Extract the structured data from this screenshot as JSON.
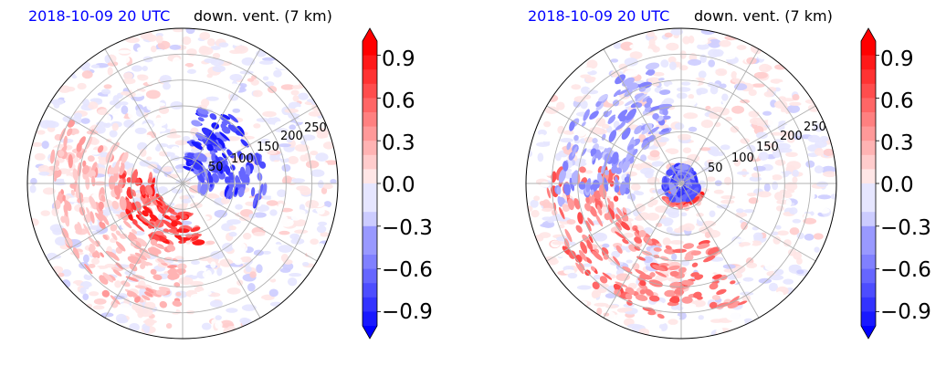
{
  "figure": {
    "panels": [
      {
        "title_left": "2018-10-09 20 UTC",
        "title_right": "down. vent. (7 km)",
        "ring_labels": [
          "50",
          "100",
          "150",
          "200",
          "250"
        ]
      },
      {
        "title_left": "2018-10-09 20 UTC",
        "title_right": "down. vent. (7 km)",
        "ring_labels": [
          "50",
          "100",
          "150",
          "200",
          "250"
        ]
      }
    ],
    "colorbar": {
      "ticks": [
        "0.9",
        "0.6",
        "0.3",
        "0.0",
        "−0.3",
        "−0.6",
        "−0.9"
      ]
    },
    "colors": {
      "title_date": "#0000ff",
      "positive": "#ff0000",
      "negative": "#0000ff",
      "neutral": "#ffffff",
      "grid": "#b0b0b0"
    }
  },
  "chart_data": [
    {
      "type": "heatmap",
      "projection": "polar",
      "title": "2018-10-09 20 UTC   down. vent. (7 km)",
      "radial_ticks": [
        50,
        100,
        150,
        200,
        250
      ],
      "angular_gridlines_deg": [
        0,
        30,
        60,
        90,
        120,
        150,
        180,
        210,
        240,
        270,
        300,
        330
      ],
      "colorbar": {
        "vmin": -1.0,
        "vmax": 1.0,
        "levels": 20,
        "ticks": [
          -0.9,
          -0.6,
          -0.3,
          0.0,
          0.3,
          0.6,
          0.9
        ],
        "extend": "both",
        "cmap": "bwr"
      },
      "description_features": [
        {
          "sign": "negative",
          "strength": 0.95,
          "sector": "north-east to east",
          "radius_range": [
            30,
            160
          ]
        },
        {
          "sign": "positive",
          "strength": 0.95,
          "sector": "west to south",
          "radius_range": [
            50,
            120
          ]
        },
        {
          "sign": "positive",
          "strength": 0.4,
          "sector": "west to south-west outer bands",
          "radius_range": [
            120,
            260
          ]
        }
      ]
    },
    {
      "type": "heatmap",
      "projection": "polar",
      "title": "2018-10-09 20 UTC   down. vent. (7 km)",
      "radial_ticks": [
        50,
        100,
        150,
        200,
        250
      ],
      "angular_gridlines_deg": [
        0,
        30,
        60,
        90,
        120,
        150,
        180,
        210,
        240,
        270,
        300,
        330
      ],
      "colorbar": {
        "vmin": -1.0,
        "vmax": 1.0,
        "levels": 20,
        "ticks": [
          -0.9,
          -0.6,
          -0.3,
          0.0,
          0.3,
          0.6,
          0.9
        ],
        "extend": "both",
        "cmap": "bwr"
      },
      "description_features": [
        {
          "sign": "positive",
          "strength": 0.95,
          "sector": "south (inner ring)",
          "radius_range": [
            15,
            45
          ]
        },
        {
          "sign": "negative",
          "strength": 0.8,
          "sector": "inner ring",
          "radius_range": [
            10,
            35
          ]
        },
        {
          "sign": "positive",
          "strength": 0.7,
          "sector": "south-west outer bands",
          "radius_range": [
            120,
            260
          ]
        },
        {
          "sign": "negative",
          "strength": 0.5,
          "sector": "north-west",
          "radius_range": [
            100,
            240
          ]
        }
      ]
    }
  ]
}
